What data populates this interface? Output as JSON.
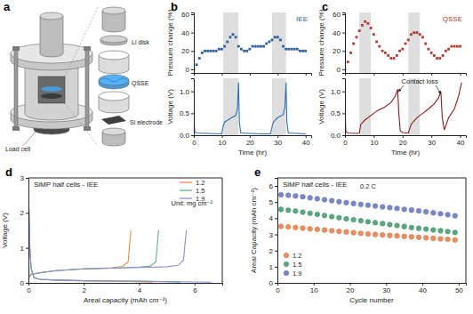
{
  "diagram": {
    "panel_label": "a",
    "labels": {
      "li_disk": "Li disk",
      "qsse": "QSSE",
      "si_electrode": "Si electrode",
      "load_cell": "Load cell"
    }
  },
  "chart_data": [
    {
      "panel_label": "b",
      "type": "scatter",
      "ylabel": "Pressure change (%)",
      "xlim": [
        0,
        42
      ],
      "xticks": [
        0,
        10,
        20,
        30,
        40
      ],
      "ylim": [
        -4,
        62
      ],
      "yticks": [
        0,
        20,
        40,
        60
      ],
      "tick_labels": "y",
      "legend": "top-right",
      "shaded": [
        [
          10.5,
          16
        ],
        [
          28,
          33
        ]
      ],
      "x": [
        0,
        1,
        2,
        3,
        4,
        5,
        6,
        7,
        8,
        9,
        10,
        11,
        12,
        13,
        14,
        15,
        16,
        17,
        18,
        19,
        20,
        21,
        22,
        23,
        24,
        25,
        26,
        27,
        28,
        29,
        30,
        31,
        32,
        33,
        34,
        35,
        36,
        37,
        38,
        39,
        40
      ],
      "series": [
        {
          "name": "IEE",
          "color": "#2e5f9a",
          "marker": "square",
          "values": [
            0,
            5,
            12,
            18,
            20,
            20,
            20,
            20,
            20,
            22,
            22,
            25,
            30,
            35,
            38,
            35,
            25,
            22,
            20,
            20,
            22,
            25,
            25,
            25,
            25,
            25,
            28,
            30,
            32,
            35,
            35,
            32,
            25,
            22,
            22,
            22,
            22,
            22,
            20,
            20,
            20
          ]
        }
      ]
    },
    {
      "type": "line",
      "xlabel": "Time (hr)",
      "ylabel": "Voltage (V)",
      "xlim": [
        0,
        42
      ],
      "xticks": [
        0,
        10,
        20,
        30,
        40
      ],
      "ylim": [
        0,
        1.3
      ],
      "yticks": [
        {
          "value": 0,
          "label": "0.0"
        },
        0.5,
        {
          "value": 1,
          "label": "1.0"
        }
      ],
      "shaded": [
        [
          10.5,
          16
        ],
        [
          28,
          33
        ]
      ],
      "series": [
        {
          "color": "#2e6db0",
          "x": [
            0,
            0.3,
            1,
            5,
            10,
            10.5,
            11,
            13,
            15,
            15.6,
            16,
            16.3,
            16.8,
            20,
            25,
            27.5,
            28,
            28.5,
            30,
            32,
            32.6,
            33,
            33.3,
            33.8,
            37,
            40
          ],
          "values": [
            0.5,
            0.08,
            0.05,
            0.04,
            0.03,
            0.2,
            0.3,
            0.38,
            0.45,
            0.6,
            1.2,
            0.3,
            0.05,
            0.04,
            0.03,
            0.03,
            0.2,
            0.3,
            0.4,
            0.47,
            0.65,
            1.2,
            0.3,
            0.05,
            0.04,
            0.03
          ]
        }
      ]
    },
    {
      "panel_label": "c",
      "type": "scatter",
      "ylabel": "Pressure change (%)",
      "xlim": [
        0,
        42
      ],
      "xticks": [
        0,
        10,
        20,
        30,
        40
      ],
      "ylim": [
        -4,
        62
      ],
      "yticks": [
        0,
        20,
        40,
        60
      ],
      "tick_labels": "y",
      "legend": "top-right",
      "shaded": [
        [
          5,
          9
        ],
        [
          22,
          26
        ]
      ],
      "x": [
        0,
        1,
        2,
        3,
        4,
        5,
        6,
        7,
        8,
        9,
        10,
        11,
        12,
        13,
        14,
        15,
        16,
        17,
        18,
        19,
        20,
        21,
        22,
        23,
        24,
        25,
        26,
        27,
        28,
        29,
        30,
        31,
        32,
        33,
        34,
        35,
        36,
        37,
        38,
        39,
        40
      ],
      "series": [
        {
          "name": "QSSE",
          "color": "#b03a32",
          "marker": "square",
          "values": [
            0,
            8,
            18,
            28,
            35,
            42,
            48,
            52,
            50,
            45,
            38,
            30,
            25,
            20,
            18,
            15,
            12,
            12,
            15,
            20,
            22,
            28,
            32,
            38,
            40,
            40,
            38,
            35,
            28,
            22,
            18,
            15,
            12,
            12,
            15,
            20,
            22,
            25,
            25,
            25,
            25
          ]
        }
      ]
    },
    {
      "type": "line",
      "xlabel": "Time (hr)",
      "ylabel": "Voltage (V)",
      "xlim": [
        0,
        42
      ],
      "xticks": [
        0,
        10,
        20,
        30,
        40
      ],
      "ylim": [
        0,
        1.3
      ],
      "yticks": [
        {
          "value": 0,
          "label": "0.0"
        },
        0.5,
        {
          "value": 1,
          "label": "1.0"
        }
      ],
      "shaded": [
        [
          5,
          9
        ],
        [
          22,
          26
        ]
      ],
      "annotations": [
        {
          "text": "Contact loss",
          "x": 26,
          "y": 1.18,
          "arrows_to": [
            [
              18.6,
              1.0
            ],
            [
              33.2,
              0.95
            ]
          ]
        }
      ],
      "series": [
        {
          "color": "#8b1e1a",
          "x": [
            0,
            0.3,
            1,
            4,
            5,
            5.5,
            7,
            9,
            10,
            11,
            14,
            16,
            17.5,
            18.3,
            18.7,
            19.2,
            20,
            22,
            23,
            25,
            27,
            29,
            31,
            32.5,
            33.3,
            33.8,
            34.5,
            36,
            38,
            39.5,
            40.5
          ],
          "values": [
            0.6,
            0.08,
            0.05,
            0.04,
            0.05,
            0.25,
            0.35,
            0.45,
            0.5,
            0.55,
            0.65,
            0.75,
            0.9,
            1.05,
            0.5,
            0.1,
            0.06,
            0.05,
            0.25,
            0.4,
            0.5,
            0.6,
            0.72,
            0.85,
            1.0,
            0.4,
            0.12,
            0.4,
            0.6,
            0.9,
            1.2
          ]
        }
      ]
    },
    {
      "panel_label": "d",
      "type": "line",
      "title": "SiMP half cells - IEE",
      "xlabel": "Areal capacity (mAh cm⁻²)",
      "ylabel": "Voltage (V)",
      "xlim": [
        0,
        7
      ],
      "xticks": [
        0,
        2,
        4,
        6
      ],
      "ylim": [
        0,
        3
      ],
      "yticks": [
        0,
        1,
        2,
        3
      ],
      "legend": "top-right",
      "annotations": [
        {
          "text": "Unit: mg cm⁻²",
          "x": 5.9,
          "y": 2.2
        }
      ],
      "series": [
        {
          "name": "1.2",
          "color": "#ee8a4e",
          "x": [
            0,
            0.05,
            0.1,
            0.2,
            0.4,
            1,
            2,
            3,
            4.5,
            null,
            0,
            0.1,
            0.5,
            1,
            2,
            3,
            3.4,
            3.6,
            3.7
          ],
          "values": [
            2.6,
            1.0,
            0.4,
            0.15,
            0.1,
            0.08,
            0.06,
            0.05,
            0.02,
            null,
            0.15,
            0.25,
            0.3,
            0.35,
            0.4,
            0.43,
            0.47,
            0.6,
            1.5
          ]
        },
        {
          "name": "1.5",
          "color": "#5fb389",
          "x": [
            0,
            0.05,
            0.1,
            0.2,
            0.4,
            1,
            2,
            3,
            4,
            5.5,
            null,
            0,
            0.1,
            0.5,
            1,
            2,
            3,
            4,
            4.4,
            4.6,
            4.7
          ],
          "values": [
            2.7,
            1.0,
            0.4,
            0.15,
            0.1,
            0.08,
            0.06,
            0.05,
            0.05,
            0.02,
            null,
            0.15,
            0.25,
            0.3,
            0.35,
            0.4,
            0.42,
            0.45,
            0.48,
            0.6,
            1.5
          ]
        },
        {
          "name": "1.9",
          "color": "#8a8fd6",
          "x": [
            0,
            0.05,
            0.1,
            0.2,
            0.4,
            1,
            2,
            3,
            4,
            5,
            6.6,
            null,
            0,
            0.1,
            0.5,
            1,
            2,
            3,
            4,
            5,
            5.4,
            5.6,
            5.7
          ],
          "values": [
            2.8,
            1.0,
            0.4,
            0.15,
            0.1,
            0.08,
            0.06,
            0.05,
            0.05,
            0.04,
            0.02,
            null,
            0.15,
            0.25,
            0.3,
            0.35,
            0.4,
            0.42,
            0.44,
            0.46,
            0.5,
            0.65,
            1.5
          ]
        }
      ]
    },
    {
      "panel_label": "e",
      "type": "scatter",
      "title": "SiMP half cells - IEE",
      "xlabel": "Cycle number",
      "ylabel": "Areal Capacity (mAh cm⁻²)",
      "xlim": [
        0,
        52
      ],
      "xticks": [
        0,
        10,
        20,
        30,
        40,
        50
      ],
      "ylim": [
        0,
        6.5
      ],
      "yticks": [
        0,
        1,
        2,
        3,
        4,
        5,
        6
      ],
      "legend": "bottom-left",
      "annotations": [
        {
          "text": "0.2 C",
          "x": 25,
          "y": 5.85
        }
      ],
      "x": [
        1,
        3,
        5,
        7,
        9,
        11,
        13,
        15,
        17,
        19,
        21,
        23,
        25,
        27,
        29,
        31,
        33,
        35,
        37,
        39,
        41,
        43,
        45,
        47,
        49
      ],
      "series": [
        {
          "name": "1.2",
          "color": "#ef8e5b",
          "marker": "circle",
          "values": [
            3.5,
            3.47,
            3.43,
            3.39,
            3.35,
            3.31,
            3.27,
            3.23,
            3.19,
            3.15,
            3.11,
            3.07,
            3.03,
            3.0,
            2.97,
            2.94,
            2.91,
            2.88,
            2.85,
            2.82,
            2.79,
            2.76,
            2.73,
            2.7,
            2.66
          ]
        },
        {
          "name": "1.5",
          "color": "#5aa97e",
          "marker": "circle",
          "values": [
            4.55,
            4.5,
            4.45,
            4.38,
            4.31,
            4.24,
            4.17,
            4.1,
            4.03,
            3.97,
            3.91,
            3.85,
            3.79,
            3.73,
            3.67,
            3.61,
            3.55,
            3.49,
            3.43,
            3.38,
            3.33,
            3.28,
            3.23,
            3.18,
            3.12
          ]
        },
        {
          "name": "1.9",
          "color": "#7a87cc",
          "marker": "circle",
          "values": [
            5.45,
            5.42,
            5.38,
            5.33,
            5.27,
            5.21,
            5.15,
            5.09,
            5.03,
            4.97,
            4.91,
            4.86,
            4.81,
            4.76,
            4.71,
            4.66,
            4.61,
            4.56,
            4.51,
            4.46,
            4.4,
            4.34,
            4.28,
            4.22,
            4.16
          ]
        }
      ]
    }
  ]
}
